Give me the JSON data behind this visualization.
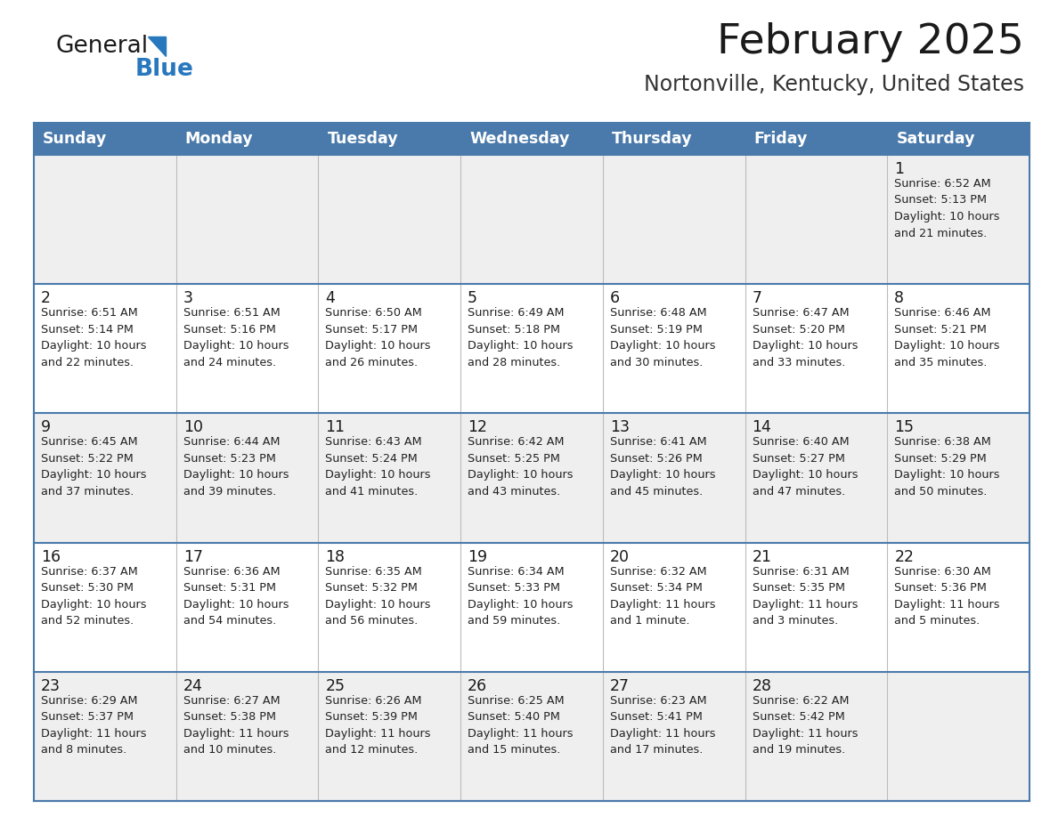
{
  "title": "February 2025",
  "subtitle": "Nortonville, Kentucky, United States",
  "header_bg": "#4a7aab",
  "header_text": "#ffffff",
  "day_headers": [
    "Sunday",
    "Monday",
    "Tuesday",
    "Wednesday",
    "Thursday",
    "Friday",
    "Saturday"
  ],
  "title_color": "#1a1a1a",
  "subtitle_color": "#333333",
  "cell_text_color": "#222222",
  "day_num_color": "#1a1a1a",
  "border_color": "#4a7aab",
  "cell_border_color": "#4a7aab",
  "row_bg": [
    "#efefef",
    "#ffffff",
    "#efefef",
    "#ffffff",
    "#efefef"
  ],
  "calendar_data": [
    [
      "",
      "",
      "",
      "",
      "",
      "",
      "1\nSunrise: 6:52 AM\nSunset: 5:13 PM\nDaylight: 10 hours\nand 21 minutes."
    ],
    [
      "2\nSunrise: 6:51 AM\nSunset: 5:14 PM\nDaylight: 10 hours\nand 22 minutes.",
      "3\nSunrise: 6:51 AM\nSunset: 5:16 PM\nDaylight: 10 hours\nand 24 minutes.",
      "4\nSunrise: 6:50 AM\nSunset: 5:17 PM\nDaylight: 10 hours\nand 26 minutes.",
      "5\nSunrise: 6:49 AM\nSunset: 5:18 PM\nDaylight: 10 hours\nand 28 minutes.",
      "6\nSunrise: 6:48 AM\nSunset: 5:19 PM\nDaylight: 10 hours\nand 30 minutes.",
      "7\nSunrise: 6:47 AM\nSunset: 5:20 PM\nDaylight: 10 hours\nand 33 minutes.",
      "8\nSunrise: 6:46 AM\nSunset: 5:21 PM\nDaylight: 10 hours\nand 35 minutes."
    ],
    [
      "9\nSunrise: 6:45 AM\nSunset: 5:22 PM\nDaylight: 10 hours\nand 37 minutes.",
      "10\nSunrise: 6:44 AM\nSunset: 5:23 PM\nDaylight: 10 hours\nand 39 minutes.",
      "11\nSunrise: 6:43 AM\nSunset: 5:24 PM\nDaylight: 10 hours\nand 41 minutes.",
      "12\nSunrise: 6:42 AM\nSunset: 5:25 PM\nDaylight: 10 hours\nand 43 minutes.",
      "13\nSunrise: 6:41 AM\nSunset: 5:26 PM\nDaylight: 10 hours\nand 45 minutes.",
      "14\nSunrise: 6:40 AM\nSunset: 5:27 PM\nDaylight: 10 hours\nand 47 minutes.",
      "15\nSunrise: 6:38 AM\nSunset: 5:29 PM\nDaylight: 10 hours\nand 50 minutes."
    ],
    [
      "16\nSunrise: 6:37 AM\nSunset: 5:30 PM\nDaylight: 10 hours\nand 52 minutes.",
      "17\nSunrise: 6:36 AM\nSunset: 5:31 PM\nDaylight: 10 hours\nand 54 minutes.",
      "18\nSunrise: 6:35 AM\nSunset: 5:32 PM\nDaylight: 10 hours\nand 56 minutes.",
      "19\nSunrise: 6:34 AM\nSunset: 5:33 PM\nDaylight: 10 hours\nand 59 minutes.",
      "20\nSunrise: 6:32 AM\nSunset: 5:34 PM\nDaylight: 11 hours\nand 1 minute.",
      "21\nSunrise: 6:31 AM\nSunset: 5:35 PM\nDaylight: 11 hours\nand 3 minutes.",
      "22\nSunrise: 6:30 AM\nSunset: 5:36 PM\nDaylight: 11 hours\nand 5 minutes."
    ],
    [
      "23\nSunrise: 6:29 AM\nSunset: 5:37 PM\nDaylight: 11 hours\nand 8 minutes.",
      "24\nSunrise: 6:27 AM\nSunset: 5:38 PM\nDaylight: 11 hours\nand 10 minutes.",
      "25\nSunrise: 6:26 AM\nSunset: 5:39 PM\nDaylight: 11 hours\nand 12 minutes.",
      "26\nSunrise: 6:25 AM\nSunset: 5:40 PM\nDaylight: 11 hours\nand 15 minutes.",
      "27\nSunrise: 6:23 AM\nSunset: 5:41 PM\nDaylight: 11 hours\nand 17 minutes.",
      "28\nSunrise: 6:22 AM\nSunset: 5:42 PM\nDaylight: 11 hours\nand 19 minutes.",
      ""
    ]
  ],
  "logo_color_general": "#1a1a1a",
  "logo_color_blue": "#2878be",
  "logo_triangle_color": "#2878be",
  "fig_width": 11.88,
  "fig_height": 9.18,
  "dpi": 100
}
